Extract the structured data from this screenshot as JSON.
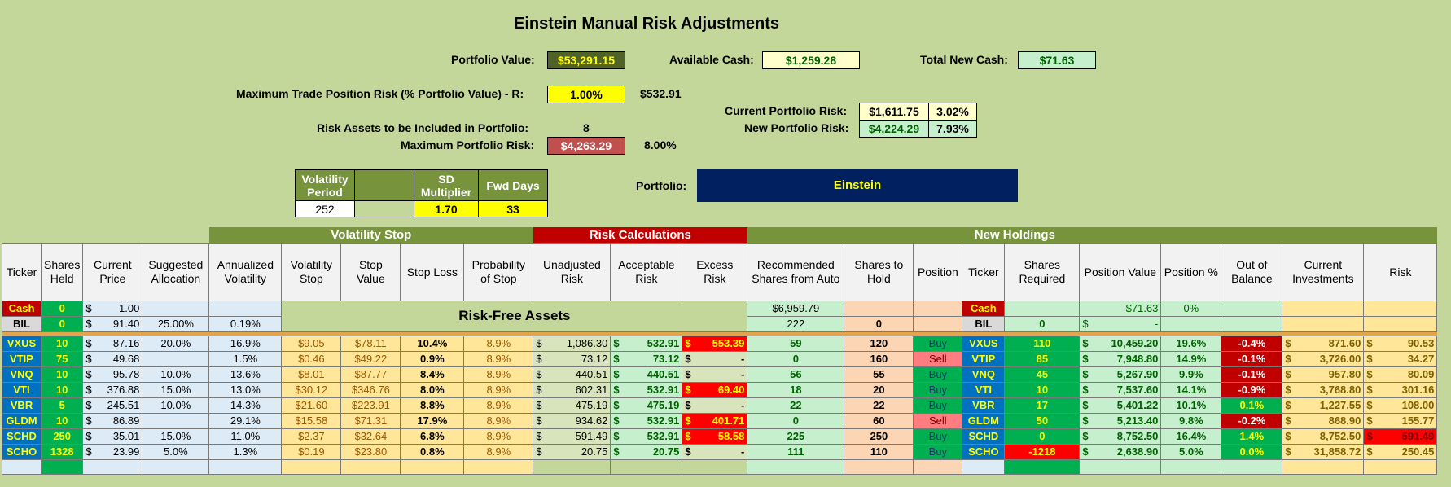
{
  "title": "Einstein Manual Risk Adjustments",
  "summary": {
    "portfolio_value_label": "Portfolio Value:",
    "portfolio_value": "$53,291.15",
    "available_cash_label": "Available Cash:",
    "available_cash": "$1,259.28",
    "total_new_cash_label": "Total New Cash:",
    "total_new_cash": "$71.63",
    "max_trade_risk_label": "Maximum Trade Position Risk (% Portfolio Value) - R:",
    "max_trade_risk_pct": "1.00%",
    "max_trade_risk_amt": "$532.91",
    "current_risk_label": "Current Portfolio Risk:",
    "current_risk_amt": "$1,611.75",
    "current_risk_pct": "3.02%",
    "new_risk_label": "New Portfolio Risk:",
    "new_risk_amt": "$4,224.29",
    "new_risk_pct": "7.93%",
    "risk_assets_label": "Risk Assets to be Included in Portfolio:",
    "risk_assets_count": "8",
    "max_portfolio_risk_label": "Maximum Portfolio Risk:",
    "max_portfolio_risk_amt": "$4,263.29",
    "max_portfolio_risk_pct": "8.00%",
    "portfolio_label": "Portfolio:",
    "portfolio_name": "Einstein"
  },
  "params": {
    "h1": "Volatility Period",
    "h2": "",
    "h3": "SD Multiplier",
    "h4": "Fwd Days",
    "v1": "252",
    "v2": "",
    "v3": "1.70",
    "v4": "33"
  },
  "groups": {
    "vol_stop": "Volatility Stop",
    "risk_calc": "Risk Calculations",
    "new_holdings": "New Holdings"
  },
  "headers": [
    "Ticker",
    "Shares Held",
    "Current Price",
    "Suggested Allocation",
    "Annualized Volatility",
    "Volatility Stop",
    "Stop Value",
    "Stop Loss",
    "Probability of Stop",
    "Unadjusted Risk",
    "Acceptable Risk",
    "Excess Risk",
    "Recommended Shares from Auto",
    "Shares to Hold",
    "Position",
    "Ticker",
    "Shares Required",
    "Position Value",
    "Position %",
    "Out of Balance",
    "Current Investments",
    "Risk"
  ],
  "risk_free_label": "Risk-Free Assets",
  "cash_row": {
    "ticker": "Cash",
    "shares": "0",
    "price": "1.00",
    "rec": "$6,959.79",
    "ticker2": "Cash",
    "posval": "$71.63",
    "pospct": "0%"
  },
  "bil_row": {
    "ticker": "BIL",
    "shares": "0",
    "price": "91.40",
    "alloc": "25.00%",
    "vol": "0.19%",
    "rec": "222",
    "hold": "0",
    "ticker2": "BIL",
    "req": "0",
    "posval": "-"
  },
  "dollar": "$",
  "rows": [
    {
      "ticker": "VXUS",
      "shares": "10",
      "price": "87.16",
      "alloc": "20.0%",
      "vol": "16.9%",
      "vstop": "$9.05",
      "stopval": "$78.11",
      "stoploss": "10.4%",
      "prob": "8.9%",
      "unadj": "1,086.30",
      "accept": "532.91",
      "excess": "553.39",
      "rec": "59",
      "hold": "120",
      "pos": "Buy",
      "ticker2": "VXUS",
      "req": "110",
      "posval": "10,459.20",
      "pospct": "19.6%",
      "oob": "-0.4%",
      "curinv": "871.60",
      "risk": "90.53"
    },
    {
      "ticker": "VTIP",
      "shares": "75",
      "price": "49.68",
      "alloc": "",
      "vol": "1.5%",
      "vstop": "$0.46",
      "stopval": "$49.22",
      "stoploss": "0.9%",
      "prob": "8.9%",
      "unadj": "73.12",
      "accept": "73.12",
      "excess": "-",
      "rec": "0",
      "hold": "160",
      "pos": "Sell",
      "ticker2": "VTIP",
      "req": "85",
      "posval": "7,948.80",
      "pospct": "14.9%",
      "oob": "-0.1%",
      "curinv": "3,726.00",
      "risk": "34.27"
    },
    {
      "ticker": "VNQ",
      "shares": "10",
      "price": "95.78",
      "alloc": "10.0%",
      "vol": "13.6%",
      "vstop": "$8.01",
      "stopval": "$87.77",
      "stoploss": "8.4%",
      "prob": "8.9%",
      "unadj": "440.51",
      "accept": "440.51",
      "excess": "-",
      "rec": "56",
      "hold": "55",
      "pos": "Buy",
      "ticker2": "VNQ",
      "req": "45",
      "posval": "5,267.90",
      "pospct": "9.9%",
      "oob": "-0.1%",
      "curinv": "957.80",
      "risk": "80.09"
    },
    {
      "ticker": "VTI",
      "shares": "10",
      "price": "376.88",
      "alloc": "15.0%",
      "vol": "13.0%",
      "vstop": "$30.12",
      "stopval": "$346.76",
      "stoploss": "8.0%",
      "prob": "8.9%",
      "unadj": "602.31",
      "accept": "532.91",
      "excess": "69.40",
      "rec": "18",
      "hold": "20",
      "pos": "Buy",
      "ticker2": "VTI",
      "req": "10",
      "posval": "7,537.60",
      "pospct": "14.1%",
      "oob": "-0.9%",
      "curinv": "3,768.80",
      "risk": "301.16"
    },
    {
      "ticker": "VBR",
      "shares": "5",
      "price": "245.51",
      "alloc": "10.0%",
      "vol": "14.3%",
      "vstop": "$21.60",
      "stopval": "$223.91",
      "stoploss": "8.8%",
      "prob": "8.9%",
      "unadj": "475.19",
      "accept": "475.19",
      "excess": "-",
      "rec": "22",
      "hold": "22",
      "pos": "Buy",
      "ticker2": "VBR",
      "req": "17",
      "posval": "5,401.22",
      "pospct": "10.1%",
      "oob": "0.1%",
      "curinv": "1,227.55",
      "risk": "108.00"
    },
    {
      "ticker": "GLDM",
      "shares": "10",
      "price": "86.89",
      "alloc": "",
      "vol": "29.1%",
      "vstop": "$15.58",
      "stopval": "$71.31",
      "stoploss": "17.9%",
      "prob": "8.9%",
      "unadj": "934.62",
      "accept": "532.91",
      "excess": "401.71",
      "rec": "0",
      "hold": "60",
      "pos": "Sell",
      "ticker2": "GLDM",
      "req": "50",
      "posval": "5,213.40",
      "pospct": "9.8%",
      "oob": "-0.2%",
      "curinv": "868.90",
      "risk": "155.77"
    },
    {
      "ticker": "SCHD",
      "shares": "250",
      "price": "35.01",
      "alloc": "15.0%",
      "vol": "11.0%",
      "vstop": "$2.37",
      "stopval": "$32.64",
      "stoploss": "6.8%",
      "prob": "8.9%",
      "unadj": "591.49",
      "accept": "532.91",
      "excess": "58.58",
      "rec": "225",
      "hold": "250",
      "pos": "Buy",
      "ticker2": "SCHD",
      "req": "0",
      "posval": "8,752.50",
      "pospct": "16.4%",
      "oob": "1.4%",
      "curinv": "8,752.50",
      "risk": "591.49"
    },
    {
      "ticker": "SCHO",
      "shares": "1328",
      "price": "23.99",
      "alloc": "5.0%",
      "vol": "1.3%",
      "vstop": "$0.19",
      "stopval": "$23.80",
      "stoploss": "0.8%",
      "prob": "8.9%",
      "unadj": "20.75",
      "accept": "20.75",
      "excess": "-",
      "rec": "111",
      "hold": "110",
      "pos": "Buy",
      "ticker2": "SCHO",
      "req": "-1218",
      "posval": "2,638.90",
      "pospct": "5.0%",
      "oob": "0.0%",
      "curinv": "31,858.72",
      "risk": "250.45"
    }
  ],
  "colors": {
    "bg": "#c4d79b",
    "dark_green": "#77933c",
    "red": "#c00000",
    "navy": "#002060",
    "yellow": "#ffff00",
    "buy": "#00b050",
    "sell": "#ff7c80",
    "ticker_blue": "#0070c0"
  }
}
